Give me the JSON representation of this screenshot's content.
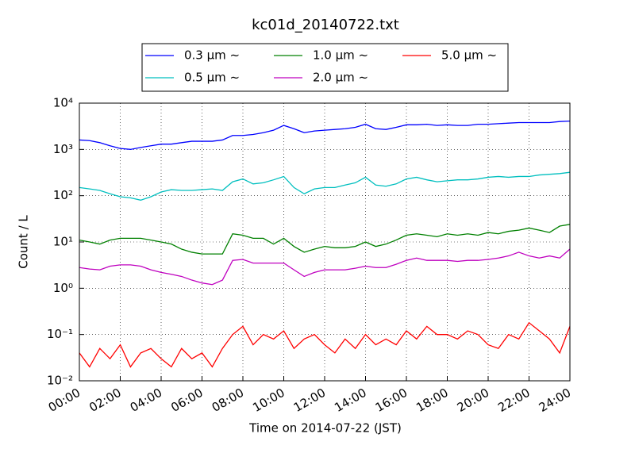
{
  "chart_data": {
    "type": "line",
    "title": "kc01d_20140722.txt",
    "x_label": "Time on 2014-07-22 (JST)",
    "y_label": "Count / L",
    "yscale": "log",
    "grid": true,
    "x": [
      0,
      0.5,
      1,
      1.5,
      2,
      2.5,
      3,
      3.5,
      4,
      4.5,
      5,
      5.5,
      6,
      6.5,
      7,
      7.5,
      8,
      8.5,
      9,
      9.5,
      10,
      10.5,
      11,
      11.5,
      12,
      12.5,
      13,
      13.5,
      14,
      14.5,
      15,
      15.5,
      16,
      16.5,
      17,
      17.5,
      18,
      18.5,
      19,
      19.5,
      20,
      20.5,
      21,
      21.5,
      22,
      22.5,
      23,
      23.5,
      24
    ],
    "xlim": [
      0,
      24
    ],
    "xticks": [
      {
        "value": 0,
        "label": "00:00"
      },
      {
        "value": 2,
        "label": "02:00"
      },
      {
        "value": 4,
        "label": "04:00"
      },
      {
        "value": 6,
        "label": "06:00"
      },
      {
        "value": 8,
        "label": "08:00"
      },
      {
        "value": 10,
        "label": "10:00"
      },
      {
        "value": 12,
        "label": "12:00"
      },
      {
        "value": 14,
        "label": "14:00"
      },
      {
        "value": 16,
        "label": "16:00"
      },
      {
        "value": 18,
        "label": "18:00"
      },
      {
        "value": 20,
        "label": "20:00"
      },
      {
        "value": 22,
        "label": "22:00"
      },
      {
        "value": 24,
        "label": "24:00"
      }
    ],
    "ylim": [
      0.01,
      10000
    ],
    "yticks": [
      {
        "value": 0.01,
        "label": "10⁻²"
      },
      {
        "value": 0.1,
        "label": "10⁻¹"
      },
      {
        "value": 1,
        "label": "10⁰"
      },
      {
        "value": 10,
        "label": "10¹"
      },
      {
        "value": 100,
        "label": "10²"
      },
      {
        "value": 1000,
        "label": "10³"
      },
      {
        "value": 10000,
        "label": "10⁴"
      }
    ],
    "series": [
      {
        "name": "0.3 μm ~",
        "color": "#0000ff",
        "values": [
          1600,
          1550,
          1400,
          1200,
          1050,
          1000,
          1100,
          1200,
          1300,
          1300,
          1400,
          1500,
          1500,
          1500,
          1600,
          2000,
          2000,
          2100,
          2300,
          2600,
          3300,
          2800,
          2300,
          2500,
          2600,
          2700,
          2800,
          3000,
          3500,
          2800,
          2700,
          3000,
          3400,
          3400,
          3500,
          3300,
          3400,
          3300,
          3300,
          3500,
          3500,
          3600,
          3700,
          3800,
          3800,
          3800,
          3800,
          4000,
          4100
        ]
      },
      {
        "name": "0.5 μm ~",
        "color": "#00bfbf",
        "values": [
          150,
          140,
          130,
          110,
          95,
          90,
          80,
          95,
          120,
          135,
          130,
          130,
          135,
          140,
          130,
          200,
          230,
          180,
          190,
          220,
          260,
          150,
          110,
          140,
          150,
          150,
          170,
          190,
          250,
          170,
          160,
          180,
          230,
          250,
          220,
          200,
          210,
          220,
          220,
          230,
          250,
          260,
          250,
          260,
          260,
          280,
          290,
          300,
          320
        ]
      },
      {
        "name": "1.0 μm ~",
        "color": "#008000",
        "values": [
          11,
          10,
          9,
          11,
          12,
          12,
          12,
          11,
          10,
          9,
          7,
          6,
          5.5,
          5.5,
          5.5,
          15,
          14,
          12,
          12,
          9,
          12,
          8,
          6,
          7,
          8,
          7.5,
          7.5,
          8,
          10,
          8,
          9,
          11,
          14,
          15,
          14,
          13,
          15,
          14,
          15,
          14,
          16,
          15,
          17,
          18,
          20,
          18,
          16,
          22,
          24
        ]
      },
      {
        "name": "2.0 μm ~",
        "color": "#bf00bf",
        "values": [
          2.8,
          2.6,
          2.5,
          3,
          3.2,
          3.2,
          3,
          2.5,
          2.2,
          2,
          1.8,
          1.5,
          1.3,
          1.2,
          1.5,
          4,
          4.2,
          3.5,
          3.5,
          3.5,
          3.5,
          2.5,
          1.8,
          2.2,
          2.5,
          2.5,
          2.5,
          2.7,
          3,
          2.8,
          2.8,
          3.3,
          4,
          4.5,
          4,
          4,
          4,
          3.8,
          4,
          4,
          4.2,
          4.5,
          5,
          6,
          5,
          4.5,
          5,
          4.5,
          7
        ]
      },
      {
        "name": "5.0 μm ~",
        "color": "#ff0000",
        "values": [
          0.04,
          0.02,
          0.05,
          0.03,
          0.06,
          0.02,
          0.04,
          0.05,
          0.03,
          0.02,
          0.05,
          0.03,
          0.04,
          0.02,
          0.05,
          0.1,
          0.15,
          0.06,
          0.1,
          0.08,
          0.12,
          0.05,
          0.08,
          0.1,
          0.06,
          0.04,
          0.08,
          0.05,
          0.1,
          0.06,
          0.08,
          0.06,
          0.12,
          0.08,
          0.15,
          0.1,
          0.1,
          0.08,
          0.12,
          0.1,
          0.06,
          0.05,
          0.1,
          0.08,
          0.18,
          0.12,
          0.08,
          0.04,
          0.15
        ]
      }
    ]
  }
}
